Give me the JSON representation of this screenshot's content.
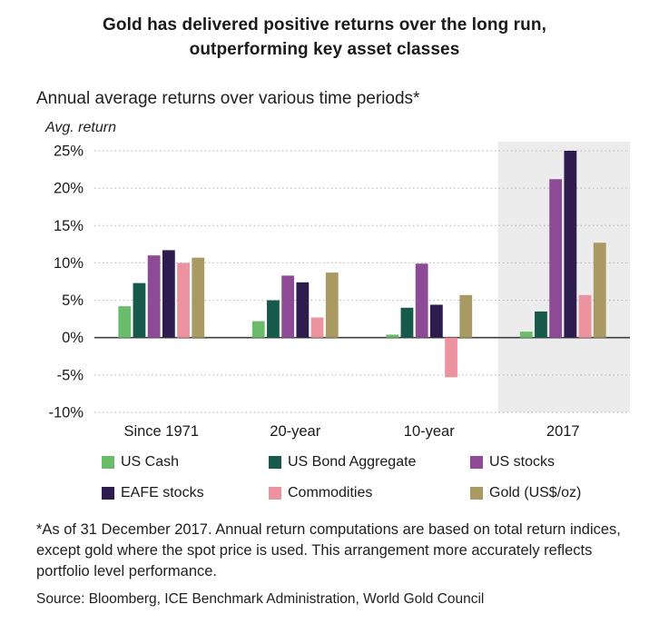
{
  "title": "Gold has delivered positive returns over the long run, outperforming key asset classes",
  "subtitle": "Annual average returns over various time periods*",
  "footnote": "*As of 31 December 2017. Annual return computations are based on total return indices, except gold where the spot price is used. This arrangement more accurately reflects portfolio level performance.",
  "source": "Source: Bloomberg, ICE Benchmark Administration, World Gold Council",
  "chart_data": {
    "type": "bar",
    "title": "Annual average returns over various time periods*",
    "ylabel": "Avg. return",
    "categories": [
      "Since 1971",
      "20-year",
      "10-year",
      "2017"
    ],
    "series": [
      {
        "name": "US Cash",
        "color": "#6abc6a",
        "values": [
          4.2,
          2.2,
          0.4,
          0.8
        ]
      },
      {
        "name": "US Bond Aggregate",
        "color": "#17594b",
        "values": [
          7.3,
          5.0,
          4.0,
          3.5
        ]
      },
      {
        "name": "US stocks",
        "color": "#8d4b96",
        "values": [
          11.0,
          8.3,
          9.9,
          21.2
        ]
      },
      {
        "name": "EAFE stocks",
        "color": "#2d1c4d",
        "values": [
          11.7,
          7.4,
          4.4,
          25.0
        ]
      },
      {
        "name": "Commodities",
        "color": "#ec93a0",
        "values": [
          10.0,
          2.7,
          -5.3,
          5.7
        ]
      },
      {
        "name": "Gold (US$/oz)",
        "color": "#a99a63",
        "values": [
          10.7,
          8.7,
          5.7,
          12.7
        ]
      }
    ],
    "ylim": [
      -10,
      25
    ],
    "yticks": [
      25,
      20,
      15,
      10,
      5,
      0,
      -5,
      -10
    ],
    "ytick_suffix": "%",
    "grid": "dashed-horizontal",
    "zero_line": true,
    "highlight_category": "2017",
    "highlight_color": "#ececec",
    "legend_position": "bottom"
  }
}
